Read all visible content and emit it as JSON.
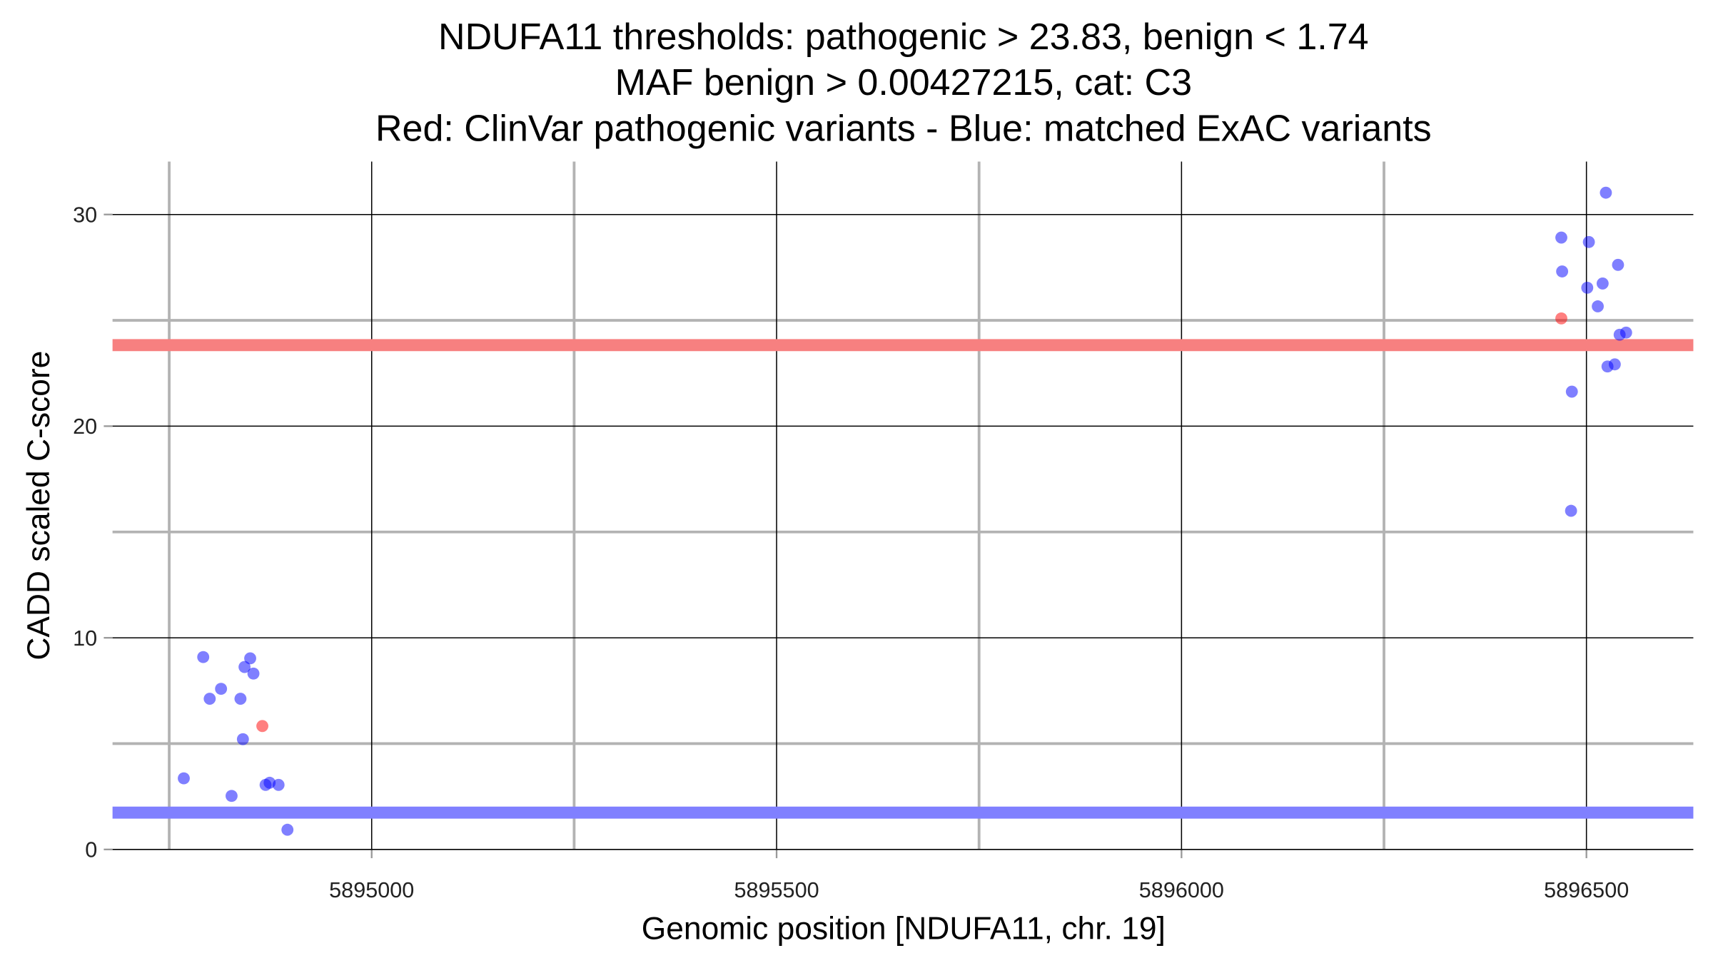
{
  "chart_data": {
    "type": "scatter",
    "title": [
      "NDUFA11 thresholds: pathogenic > 23.83, benign < 1.74",
      "MAF benign > 0.00427215, cat: C3",
      "Red: ClinVar pathogenic variants - Blue: matched ExAC variants"
    ],
    "x_label": "Genomic position [NDUFA11, chr. 19]",
    "y_label": "CADD scaled C-score",
    "xlim": [
      5894680,
      5896632
    ],
    "ylim": [
      0,
      32.5
    ],
    "xticks": [
      5895000,
      5895500,
      5896000,
      5896500
    ],
    "yticks": [
      0,
      10,
      20,
      30
    ],
    "xminor": [
      5894750,
      5895250,
      5895750,
      5896250
    ],
    "yminor": [
      5,
      15,
      25
    ],
    "grid": true,
    "thresholds": [
      {
        "value": 23.83,
        "color": "#f78080"
      },
      {
        "value": 1.74,
        "color": "#8080ff"
      }
    ],
    "series": [
      {
        "color": "#0000ff",
        "x": [
          5894768,
          5894792,
          5894800,
          5894814,
          5894827,
          5894838,
          5894841,
          5894843,
          5894850,
          5894854,
          5894869,
          5894874,
          5894885,
          5894896,
          5896469,
          5896470,
          5896503,
          5896524,
          5896501,
          5896520,
          5896514,
          5896539,
          5896541,
          5896549,
          5896526,
          5896535,
          5896482,
          5896481
        ],
        "values": [
          3.36,
          9.09,
          7.12,
          7.59,
          2.53,
          7.12,
          5.21,
          8.62,
          9.03,
          8.31,
          3.05,
          3.15,
          3.05,
          0.93,
          28.91,
          27.31,
          28.7,
          31.03,
          26.54,
          26.74,
          25.66,
          27.62,
          24.32,
          24.42,
          22.82,
          22.92,
          21.63,
          16.0
        ]
      },
      {
        "color": "#ff0000",
        "x": [
          5894865,
          5896469
        ],
        "values": [
          5.83,
          25.09
        ]
      }
    ]
  }
}
